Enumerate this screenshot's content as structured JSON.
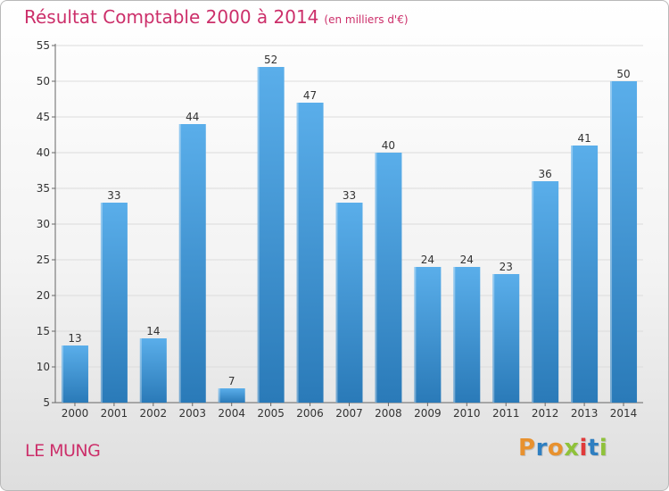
{
  "header": {
    "title": "Résultat Comptable 2000 à 2014",
    "subtitle": "(en milliers d'€)"
  },
  "footer": {
    "place": "LE MUNG",
    "brand": "Proxiti"
  },
  "colors": {
    "accent": "#cc2f6a",
    "bar_top": "#5aaeea",
    "bar_bottom": "#2a7ab8",
    "brand_letters": [
      "#e8912e",
      "#2f7fc1",
      "#e8912e",
      "#8fc23a",
      "#e03a3a",
      "#2f7fc1",
      "#8fc23a"
    ]
  },
  "chart_data": {
    "type": "bar",
    "title": "Résultat Comptable 2000 à 2014",
    "subtitle": "(en milliers d'€)",
    "categories": [
      "2000",
      "2001",
      "2002",
      "2003",
      "2004",
      "2005",
      "2006",
      "2007",
      "2008",
      "2009",
      "2010",
      "2011",
      "2012",
      "2013",
      "2014"
    ],
    "values": [
      13,
      33,
      14,
      44,
      7,
      52,
      47,
      33,
      40,
      24,
      24,
      23,
      36,
      41,
      50
    ],
    "value_labels": [
      "13",
      "33",
      "14",
      "44",
      "7",
      "52",
      "47",
      "33",
      "40",
      "24",
      "24",
      "23",
      "36",
      "41",
      "50"
    ],
    "ylim": [
      5,
      55
    ],
    "yticks": [
      "5",
      "10",
      "15",
      "20",
      "25",
      "30",
      "35",
      "40",
      "45",
      "50",
      "55"
    ],
    "grid": "horizontal",
    "legend": "none"
  }
}
